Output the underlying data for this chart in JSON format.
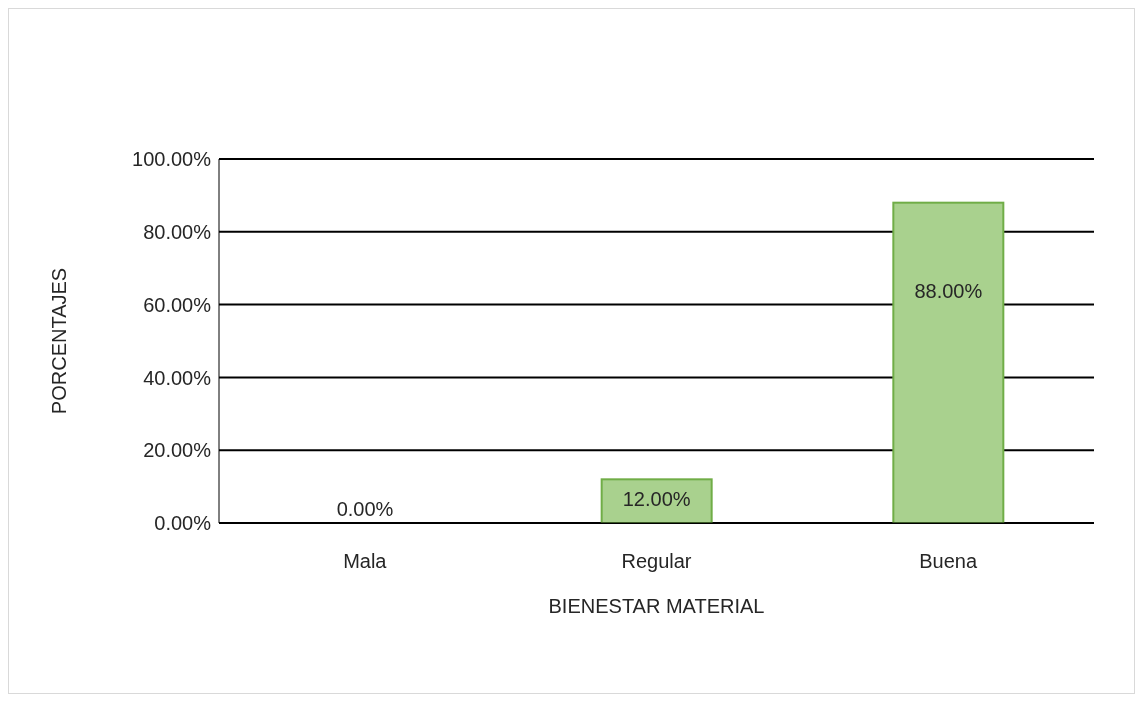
{
  "chart_data": {
    "type": "bar",
    "xlabel": "BIENESTAR MATERIAL",
    "ylabel": "PORCENTAJES",
    "categories": [
      "Mala",
      "Regular",
      "Buena"
    ],
    "values": [
      0,
      12,
      88
    ],
    "value_labels": [
      "0.00%",
      "12.00%",
      "88.00%"
    ],
    "color": "#a9d18e",
    "ylim": [
      0,
      100
    ],
    "yticks": [
      {
        "value": 0,
        "label": "0.00%"
      },
      {
        "value": 20,
        "label": "20.00%"
      },
      {
        "value": 40,
        "label": "40.00%"
      },
      {
        "value": 60,
        "label": "60.00%"
      },
      {
        "value": 80,
        "label": "80.00%"
      },
      {
        "value": 100,
        "label": "100.00%"
      }
    ],
    "grid": "y",
    "legend": false
  }
}
